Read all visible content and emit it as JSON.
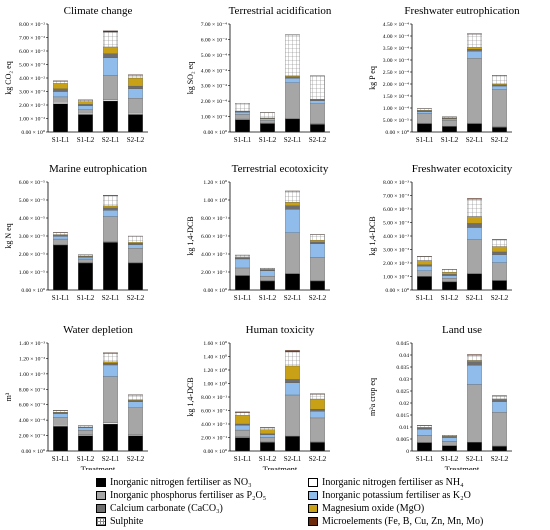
{
  "legend": {
    "items": [
      {
        "key": "no3",
        "label": "Inorganic nitrogen fertiliser as NO₃",
        "color": "#000000",
        "pattern": "solid"
      },
      {
        "key": "nh4",
        "label": "Inorganic nitrogen fertiliser as NH₄",
        "color": "#ffffff",
        "pattern": "solid"
      },
      {
        "key": "p2o5",
        "label": "Inorganic phosphorus fertiliser as P₂O₅",
        "color": "#a6a6a6",
        "pattern": "solid"
      },
      {
        "key": "k2o",
        "label": "Inorganic potassium fertiliser as K₂O",
        "color": "#8fbcea",
        "pattern": "solid"
      },
      {
        "key": "caco3",
        "label": "Calcium carbonate (CaCO₃)",
        "color": "#6e6e6e",
        "pattern": "solid"
      },
      {
        "key": "mgo",
        "label": "Magnesium oxide (MgO)",
        "color": "#c8a116",
        "pattern": "solid"
      },
      {
        "key": "so3",
        "label": "Sulphite",
        "color": "#ffffff",
        "pattern": "grid"
      },
      {
        "key": "micro",
        "label": "Microelements (Fe, B, Cu, Zn, Mn, Mo)",
        "color": "#6b2a0c",
        "pattern": "solid"
      }
    ]
  },
  "chart_data": [
    {
      "type": "bar",
      "stacked": true,
      "title": "Climate change",
      "ylabel": "kg CO₂ eq",
      "xlabel": "",
      "ylim": [
        0,
        0.08
      ],
      "yticks": [
        0,
        0.01,
        0.02,
        0.03,
        0.04,
        0.05,
        0.06,
        0.07,
        0.08
      ],
      "yticklabels": [
        "0.00 × 10⁰",
        "1.00 × 10⁻²",
        "2.00 × 10⁻²",
        "3.00 × 10⁻²",
        "4.00 × 10⁻²",
        "5.00 × 10⁻²",
        "6.00 × 10⁻²",
        "7.00 × 10⁻²",
        "8.00 × 10⁻²"
      ],
      "categories": [
        "S1-L1",
        "S1-L2",
        "S2-L1",
        "S2-L2"
      ],
      "series": [
        {
          "key": "no3",
          "values": [
            0.021,
            0.013,
            0.023,
            0.013
          ]
        },
        {
          "key": "nh4",
          "values": [
            0.001,
            0.001,
            0.001,
            0.001
          ]
        },
        {
          "key": "p2o5",
          "values": [
            0.004,
            0.0025,
            0.018,
            0.011
          ]
        },
        {
          "key": "k2o",
          "values": [
            0.004,
            0.003,
            0.013,
            0.007
          ]
        },
        {
          "key": "caco3",
          "values": [
            0.002,
            0.001,
            0.003,
            0.002
          ]
        },
        {
          "key": "mgo",
          "values": [
            0.004,
            0.002,
            0.005,
            0.006
          ]
        },
        {
          "key": "so3",
          "values": [
            0.0015,
            0.001,
            0.011,
            0.002
          ]
        },
        {
          "key": "micro",
          "values": [
            0.0005,
            0.0004,
            0.001,
            0.0005
          ]
        }
      ]
    },
    {
      "type": "bar",
      "stacked": true,
      "title": "Terrestrial acidification",
      "ylabel": "kg SO₂ eq",
      "xlabel": "",
      "ylim": [
        0,
        0.0007
      ],
      "yticks": [
        0,
        0.0001,
        0.0002,
        0.0003,
        0.0004,
        0.0005,
        0.0006,
        0.0007
      ],
      "yticklabels": [
        "0.00 × 10⁰",
        "1.00 × 10⁻⁴",
        "2.00 × 10⁻⁴",
        "3.00 × 10⁻⁴",
        "4.00 × 10⁻⁴",
        "5.00 × 10⁻⁴",
        "6.00 × 10⁻⁴",
        "7.00 × 10⁻⁴"
      ],
      "categories": [
        "S1-L1",
        "S1-L2",
        "S2-L1",
        "S2-L2"
      ],
      "series": [
        {
          "key": "no3",
          "values": [
            8e-05,
            5.5e-05,
            8.5e-05,
            5e-05
          ]
        },
        {
          "key": "nh4",
          "values": [
            4e-06,
            3e-06,
            4e-06,
            3e-06
          ]
        },
        {
          "key": "p2o5",
          "values": [
            3e-05,
            1.8e-05,
            0.00023,
            0.00013
          ]
        },
        {
          "key": "k2o",
          "values": [
            1.5e-05,
            1e-05,
            3e-05,
            2e-05
          ]
        },
        {
          "key": "caco3",
          "values": [
            4e-06,
            3e-06,
            1e-05,
            6e-06
          ]
        },
        {
          "key": "mgo",
          "values": [
            3e-06,
            2e-06,
            5e-06,
            4e-06
          ]
        },
        {
          "key": "so3",
          "values": [
            5e-05,
            3.5e-05,
            0.000265,
            0.00015
          ]
        },
        {
          "key": "micro",
          "values": [
            1e-06,
            1e-06,
            2e-06,
            1e-06
          ]
        }
      ]
    },
    {
      "type": "bar",
      "stacked": true,
      "title": "Freshwater eutrophication",
      "ylabel": "kg P eq",
      "xlabel": "",
      "ylim": [
        0,
        0.00045
      ],
      "yticks": [
        0,
        5e-05,
        0.0001,
        0.00015,
        0.0002,
        0.00025,
        0.0003,
        0.00035,
        0.0004,
        0.00045
      ],
      "yticklabels": [
        "0.00 × 10⁰",
        "5.00 × 10⁻⁵",
        "1.00 × 10⁻⁴",
        "1.50 × 10⁻⁴",
        "2.00 × 10⁻⁴",
        "2.50 × 10⁻⁴",
        "3.00 × 10⁻⁴",
        "3.50 × 10⁻⁴",
        "4.00 × 10⁻⁴",
        "4.50 × 10⁻⁴"
      ],
      "categories": [
        "S1-L1",
        "S1-L2",
        "S2-L1",
        "S2-L2"
      ],
      "series": [
        {
          "key": "no3",
          "values": [
            3.5e-05,
            2.3e-05,
            3.5e-05,
            2e-05
          ]
        },
        {
          "key": "nh4",
          "values": [
            2e-06,
            1.5e-06,
            2e-06,
            1.5e-06
          ]
        },
        {
          "key": "p2o5",
          "values": [
            4e-05,
            2.5e-05,
            0.00027,
            0.000155
          ]
        },
        {
          "key": "k2o",
          "values": [
            8e-06,
            5e-06,
            3e-05,
            1.5e-05
          ]
        },
        {
          "key": "caco3",
          "values": [
            3e-06,
            2e-06,
            8e-06,
            5e-06
          ]
        },
        {
          "key": "mgo",
          "values": [
            3e-06,
            2e-06,
            8e-06,
            4e-06
          ]
        },
        {
          "key": "so3",
          "values": [
            6e-06,
            4e-06,
            5.5e-05,
            3.5e-05
          ]
        },
        {
          "key": "micro",
          "values": [
            1e-06,
            1e-06,
            2e-06,
            1e-06
          ]
        }
      ]
    },
    {
      "type": "bar",
      "stacked": true,
      "title": "Marine eutrophication",
      "ylabel": "kg N eq",
      "xlabel": "",
      "ylim": [
        0,
        6e-05
      ],
      "yticks": [
        0,
        1e-05,
        2e-05,
        3e-05,
        4e-05,
        5e-05,
        6e-05
      ],
      "yticklabels": [
        "0.00 × 10⁰",
        "1.00 × 10⁻⁵",
        "2.00 × 10⁻⁵",
        "3.00 × 10⁻⁵",
        "4.00 × 10⁻⁵",
        "5.00 × 10⁻⁵",
        "6.00 × 10⁻⁵"
      ],
      "categories": [
        "S1-L1",
        "S1-L2",
        "S2-L1",
        "S2-L2"
      ],
      "series": [
        {
          "key": "no3",
          "values": [
            2.5e-05,
            1.5e-05,
            2.65e-05,
            1.5e-05
          ]
        },
        {
          "key": "nh4",
          "values": [
            3e-07,
            2e-07,
            3e-07,
            2e-07
          ]
        },
        {
          "key": "p2o5",
          "values": [
            3e-06,
            2e-06,
            1.4e-05,
            8e-06
          ]
        },
        {
          "key": "k2o",
          "values": [
            1.5e-06,
            1e-06,
            3.5e-06,
            2e-06
          ]
        },
        {
          "key": "caco3",
          "values": [
            6e-07,
            4e-07,
            1.3e-06,
            8e-07
          ]
        },
        {
          "key": "mgo",
          "values": [
            4e-07,
            3e-07,
            1.1e-06,
            5e-07
          ]
        },
        {
          "key": "so3",
          "values": [
            1e-06,
            6e-07,
            5.7e-06,
            3.3e-06
          ]
        },
        {
          "key": "micro",
          "values": [
            2e-07,
            1e-07,
            3e-07,
            2e-07
          ]
        }
      ]
    },
    {
      "type": "bar",
      "stacked": true,
      "title": "Terrestrial ecotoxicity",
      "ylabel": "kg 1,4-DCB",
      "xlabel": "",
      "ylim": [
        0,
        1.2
      ],
      "yticks": [
        0,
        0.2,
        0.4,
        0.6,
        0.8,
        1.0,
        1.2
      ],
      "yticklabels": [
        "0.00 × 10⁰",
        "2.00 × 10⁻¹",
        "4.00 × 10⁻¹",
        "6.00 × 10⁻¹",
        "8.00 × 10⁻¹",
        "1.00 × 10⁰",
        "1.20 × 10⁰"
      ],
      "categories": [
        "S1-L1",
        "S1-L2",
        "S2-L1",
        "S2-L2"
      ],
      "series": [
        {
          "key": "no3",
          "values": [
            0.16,
            0.1,
            0.18,
            0.1
          ]
        },
        {
          "key": "nh4",
          "values": [
            0.005,
            0.004,
            0.006,
            0.004
          ]
        },
        {
          "key": "p2o5",
          "values": [
            0.08,
            0.05,
            0.45,
            0.26
          ]
        },
        {
          "key": "k2o",
          "values": [
            0.1,
            0.06,
            0.26,
            0.15
          ]
        },
        {
          "key": "caco3",
          "values": [
            0.01,
            0.008,
            0.04,
            0.02
          ]
        },
        {
          "key": "mgo",
          "values": [
            0.01,
            0.008,
            0.04,
            0.02
          ]
        },
        {
          "key": "so3",
          "values": [
            0.02,
            0.01,
            0.12,
            0.06
          ]
        },
        {
          "key": "micro",
          "values": [
            0.004,
            0.003,
            0.005,
            0.003
          ]
        }
      ]
    },
    {
      "type": "bar",
      "stacked": true,
      "title": "Freshwater ecotoxicity",
      "ylabel": "kg 1,4-DCB",
      "xlabel": "",
      "ylim": [
        0,
        0.008
      ],
      "yticks": [
        0,
        0.001,
        0.002,
        0.003,
        0.004,
        0.005,
        0.006,
        0.007,
        0.008
      ],
      "yticklabels": [
        "0.00 × 10⁰",
        "1.00 × 10⁻³",
        "2.00 × 10⁻³",
        "3.00 × 10⁻³",
        "4.00 × 10⁻³",
        "5.00 × 10⁻³",
        "6.00 × 10⁻³",
        "7.00 × 10⁻³",
        "8.00 × 10⁻³"
      ],
      "categories": [
        "S1-L1",
        "S1-L2",
        "S2-L1",
        "S2-L2"
      ],
      "series": [
        {
          "key": "no3",
          "values": [
            0.001,
            0.0006,
            0.0012,
            0.0007
          ]
        },
        {
          "key": "nh4",
          "values": [
            2e-05,
            2e-05,
            3e-05,
            2e-05
          ]
        },
        {
          "key": "p2o5",
          "values": [
            0.0004,
            0.00025,
            0.0025,
            0.0013
          ]
        },
        {
          "key": "k2o",
          "values": [
            0.00035,
            0.0002,
            0.0009,
            0.0006
          ]
        },
        {
          "key": "caco3",
          "values": [
            0.0001,
            0.0001,
            0.0003,
            0.0002
          ]
        },
        {
          "key": "mgo",
          "values": [
            0.0003,
            0.00015,
            0.0005,
            0.0004
          ]
        },
        {
          "key": "so3",
          "values": [
            0.0003,
            0.0002,
            0.0013,
            0.0005
          ]
        },
        {
          "key": "micro",
          "values": [
            3e-05,
            2e-05,
            5e-05,
            3e-05
          ]
        }
      ]
    },
    {
      "type": "bar",
      "stacked": true,
      "title": "Water depletion",
      "ylabel": "m³",
      "xlabel": "Treatment",
      "ylim": [
        0,
        0.0014
      ],
      "yticks": [
        0,
        0.0002,
        0.0004,
        0.0006,
        0.0008,
        0.001,
        0.0012,
        0.0014
      ],
      "yticklabels": [
        "0.00 × 10⁰",
        "2.00 × 10⁻⁴",
        "4.00 × 10⁻⁴",
        "6.00 × 10⁻⁴",
        "8.00 × 10⁻⁴",
        "1.00 × 10⁻³",
        "1.20 × 10⁻³",
        "1.40 × 10⁻³"
      ],
      "categories": [
        "S1-L1",
        "S1-L2",
        "S2-L1",
        "S2-L2"
      ],
      "series": [
        {
          "key": "no3",
          "values": [
            0.00032,
            0.0002,
            0.00035,
            0.0002
          ]
        },
        {
          "key": "nh4",
          "values": [
            1.5e-05,
            1e-05,
            1.5e-05,
            1e-05
          ]
        },
        {
          "key": "p2o5",
          "values": [
            0.0001,
            6e-05,
            0.0006,
            0.00035
          ]
        },
        {
          "key": "k2o",
          "values": [
            5e-05,
            3e-05,
            0.00015,
            8e-05
          ]
        },
        {
          "key": "caco3",
          "values": [
            1e-05,
            7e-06,
            2.5e-05,
            1.5e-05
          ]
        },
        {
          "key": "mgo",
          "values": [
            8e-06,
            5e-06,
            1.5e-05,
            1e-05
          ]
        },
        {
          "key": "so3",
          "values": [
            2e-05,
            1.5e-05,
            0.00011,
            6e-05
          ]
        },
        {
          "key": "micro",
          "values": [
            5e-06,
            3e-06,
            1e-05,
            5e-06
          ]
        }
      ]
    },
    {
      "type": "bar",
      "stacked": true,
      "title": "Human toxicity",
      "ylabel": "kg 1,4-DCB",
      "xlabel": "Treatment",
      "ylim": [
        0,
        1.6
      ],
      "yticks": [
        0,
        0.2,
        0.4,
        0.6,
        0.8,
        1.0,
        1.2,
        1.4,
        1.6
      ],
      "yticklabels": [
        "0.00 × 10⁰",
        "2.00 × 10⁻¹",
        "4.00 × 10⁻¹",
        "6.00 × 10⁻¹",
        "8.00 × 10⁻¹",
        "1.00 × 10⁰",
        "1.20 × 10⁰",
        "1.40 × 10⁰",
        "1.60 × 10⁰"
      ],
      "categories": [
        "S1-L1",
        "S1-L2",
        "S2-L1",
        "S2-L2"
      ],
      "series": [
        {
          "key": "no3",
          "values": [
            0.2,
            0.13,
            0.22,
            0.13
          ]
        },
        {
          "key": "nh4",
          "values": [
            0.01,
            0.01,
            0.01,
            0.01
          ]
        },
        {
          "key": "p2o5",
          "values": [
            0.1,
            0.06,
            0.6,
            0.35
          ]
        },
        {
          "key": "k2o",
          "values": [
            0.07,
            0.04,
            0.18,
            0.1
          ]
        },
        {
          "key": "caco3",
          "values": [
            0.02,
            0.015,
            0.05,
            0.03
          ]
        },
        {
          "key": "mgo",
          "values": [
            0.13,
            0.06,
            0.2,
            0.15
          ]
        },
        {
          "key": "so3",
          "values": [
            0.04,
            0.03,
            0.21,
            0.07
          ]
        },
        {
          "key": "micro",
          "values": [
            0.01,
            0.005,
            0.02,
            0.01
          ]
        }
      ]
    },
    {
      "type": "bar",
      "stacked": true,
      "title": "Land use",
      "ylabel": "m²a crop eq",
      "xlabel": "Treatment",
      "ylim": [
        0,
        0.045
      ],
      "yticks": [
        0,
        0.005,
        0.01,
        0.015,
        0.02,
        0.025,
        0.03,
        0.035,
        0.04,
        0.045
      ],
      "yticklabels": [
        "0",
        "0.005",
        "0.01",
        "0.015",
        "0.02",
        "0.025",
        "0.03",
        "0.035",
        "0.04",
        "0.045"
      ],
      "categories": [
        "S1-L1",
        "S1-L2",
        "S2-L1",
        "S2-L2"
      ],
      "series": [
        {
          "key": "no3",
          "values": [
            0.0035,
            0.0022,
            0.0036,
            0.002
          ]
        },
        {
          "key": "nh4",
          "values": [
            0.0001,
            0.0001,
            0.0001,
            0.0001
          ]
        },
        {
          "key": "p2o5",
          "values": [
            0.003,
            0.0018,
            0.024,
            0.014
          ]
        },
        {
          "key": "k2o",
          "values": [
            0.0025,
            0.0015,
            0.008,
            0.0045
          ]
        },
        {
          "key": "caco3",
          "values": [
            0.0005,
            0.0003,
            0.0015,
            0.0008
          ]
        },
        {
          "key": "mgo",
          "values": [
            0.0003,
            0.0002,
            0.0005,
            0.0003
          ]
        },
        {
          "key": "so3",
          "values": [
            0.0006,
            0.0004,
            0.0022,
            0.0012
          ]
        },
        {
          "key": "micro",
          "values": [
            0.0002,
            0.0001,
            0.0003,
            0.0002
          ]
        }
      ]
    }
  ]
}
